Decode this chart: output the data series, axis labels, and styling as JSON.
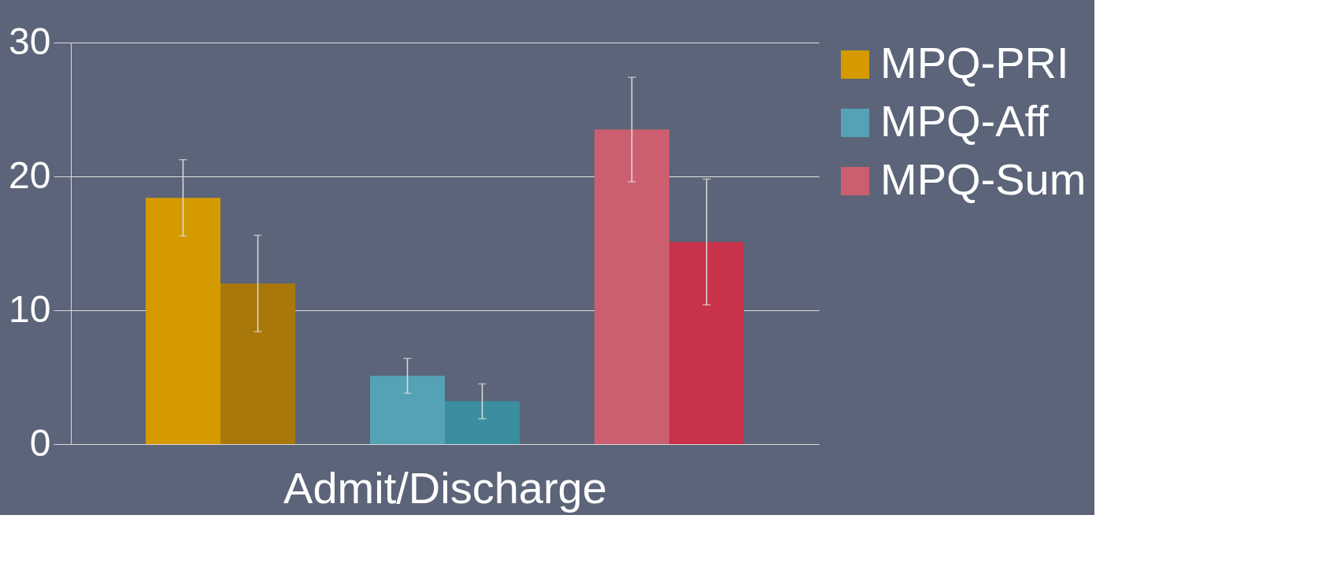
{
  "chart_data": {
    "type": "bar",
    "xlabel": "Admit/Discharge",
    "categories": [
      null
    ],
    "series": [
      {
        "name": "MPQ-PRI",
        "color": "#d49a00",
        "values": [
          18.4
        ],
        "errors": [
          2.85
        ]
      },
      {
        "color": "#a8780a",
        "values": [
          12.0
        ],
        "errors": [
          3.6
        ]
      },
      {
        "name": "MPQ-Aff",
        "color": "#55a2b6",
        "values": [
          5.1
        ],
        "errors": [
          1.3
        ]
      },
      {
        "color": "#3a8ea0",
        "values": [
          3.2
        ],
        "errors": [
          1.3
        ]
      },
      {
        "name": "MPQ-Sum",
        "color": "#cc5f6f",
        "values": [
          23.5
        ],
        "errors": [
          3.9
        ]
      },
      {
        "color": "#c8324a",
        "values": [
          15.1
        ],
        "errors": [
          4.7
        ]
      }
    ],
    "ylim": [
      0,
      30
    ],
    "yticks": [
      0,
      10,
      20,
      30
    ],
    "grid": "y",
    "legend": "right"
  }
}
